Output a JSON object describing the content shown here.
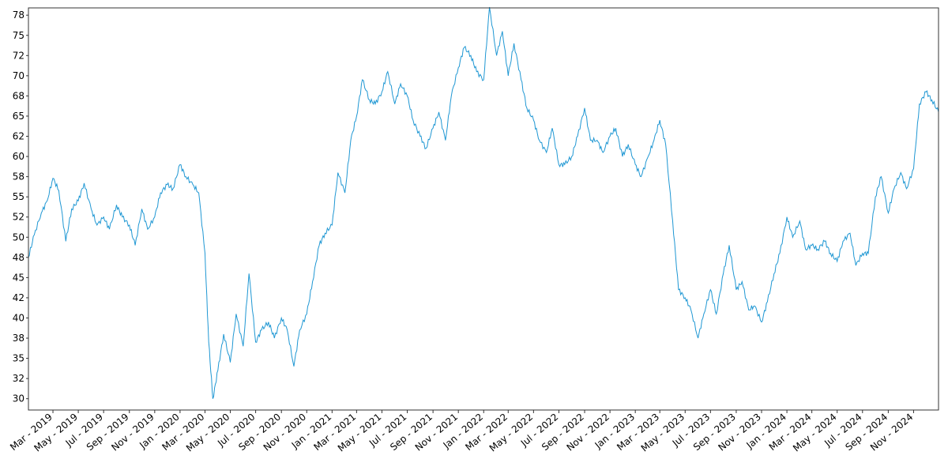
{
  "chart_data": {
    "type": "line",
    "title": "",
    "xlabel": "",
    "ylabel": "",
    "grid": false,
    "legend": "none",
    "color": "#1f97d3",
    "xlim": [
      "2019-01-01",
      "2024-12-31"
    ],
    "ylim": [
      28.6,
      78.4
    ],
    "y_ticks": [
      30,
      32.5,
      35,
      37.5,
      40,
      42.5,
      45,
      47.5,
      50,
      52.5,
      55,
      57.5,
      60,
      62.5,
      65,
      67.5,
      70,
      72.5,
      75,
      77.5
    ],
    "y_tick_labels": [
      "30",
      "32",
      "35",
      "38",
      "40",
      "42",
      "45",
      "48",
      "50",
      "52",
      "55",
      "58",
      "60",
      "62",
      "65",
      "68",
      "70",
      "72",
      "75",
      "78"
    ],
    "x_ticks": [
      "2019-03-01",
      "2019-05-01",
      "2019-07-01",
      "2019-09-01",
      "2019-11-01",
      "2020-01-01",
      "2020-03-01",
      "2020-05-01",
      "2020-07-01",
      "2020-09-01",
      "2020-11-01",
      "2021-01-01",
      "2021-03-01",
      "2021-05-01",
      "2021-07-01",
      "2021-09-01",
      "2021-11-01",
      "2022-01-01",
      "2022-03-01",
      "2022-05-01",
      "2022-07-01",
      "2022-09-01",
      "2022-11-01",
      "2023-01-01",
      "2023-03-01",
      "2023-05-01",
      "2023-07-01",
      "2023-09-01",
      "2023-11-01",
      "2024-01-01",
      "2024-03-01",
      "2024-05-01",
      "2024-07-01",
      "2024-09-01",
      "2024-11-01"
    ],
    "x_tick_labels": [
      "Mar - 2019",
      "May - 2019",
      "Jul - 2019",
      "Sep - 2019",
      "Nov - 2019",
      "Jan - 2020",
      "Mar - 2020",
      "May - 2020",
      "Jul - 2020",
      "Sep - 2020",
      "Nov - 2020",
      "Jan - 2021",
      "Mar - 2021",
      "May - 2021",
      "Jul - 2021",
      "Sep - 2021",
      "Nov - 2021",
      "Jan - 2022",
      "Mar - 2022",
      "May - 2022",
      "Jul - 2022",
      "Sep - 2022",
      "Nov - 2022",
      "Jan - 2023",
      "Mar - 2023",
      "May - 2023",
      "Jul - 2023",
      "Sep - 2023",
      "Nov - 2023",
      "Jan - 2024",
      "Mar - 2024",
      "May - 2024",
      "Jul - 2024",
      "Sep - 2024",
      "Nov - 2024"
    ],
    "series": [
      {
        "x": [
          "2019-01-01",
          "2019-01-15",
          "2019-02-01",
          "2019-02-15",
          "2019-03-01",
          "2019-03-15",
          "2019-04-01",
          "2019-04-15",
          "2019-05-01",
          "2019-05-15",
          "2019-06-01",
          "2019-06-15",
          "2019-07-01",
          "2019-07-15",
          "2019-08-01",
          "2019-08-15",
          "2019-09-01",
          "2019-09-15",
          "2019-10-01",
          "2019-10-15",
          "2019-11-01",
          "2019-11-15",
          "2019-12-01",
          "2019-12-15",
          "2020-01-01",
          "2020-01-15",
          "2020-02-01",
          "2020-02-15",
          "2020-03-01",
          "2020-03-10",
          "2020-03-20",
          "2020-04-01",
          "2020-04-15",
          "2020-05-01",
          "2020-05-15",
          "2020-06-01",
          "2020-06-15",
          "2020-07-01",
          "2020-07-15",
          "2020-08-01",
          "2020-08-15",
          "2020-09-01",
          "2020-09-15",
          "2020-10-01",
          "2020-10-15",
          "2020-11-01",
          "2020-11-15",
          "2020-12-01",
          "2020-12-15",
          "2021-01-01",
          "2021-01-15",
          "2021-02-01",
          "2021-02-15",
          "2021-03-01",
          "2021-03-15",
          "2021-04-01",
          "2021-04-15",
          "2021-05-01",
          "2021-05-15",
          "2021-06-01",
          "2021-06-15",
          "2021-07-01",
          "2021-07-15",
          "2021-08-01",
          "2021-08-15",
          "2021-09-01",
          "2021-09-15",
          "2021-10-01",
          "2021-10-15",
          "2021-11-01",
          "2021-11-15",
          "2021-12-01",
          "2021-12-15",
          "2022-01-01",
          "2022-01-15",
          "2022-02-01",
          "2022-02-15",
          "2022-03-01",
          "2022-03-15",
          "2022-04-01",
          "2022-04-15",
          "2022-05-01",
          "2022-05-15",
          "2022-06-01",
          "2022-06-15",
          "2022-07-01",
          "2022-07-15",
          "2022-08-01",
          "2022-08-15",
          "2022-09-01",
          "2022-09-15",
          "2022-10-01",
          "2022-10-15",
          "2022-11-01",
          "2022-11-15",
          "2022-12-01",
          "2022-12-15",
          "2023-01-01",
          "2023-01-15",
          "2023-02-01",
          "2023-02-15",
          "2023-03-01",
          "2023-03-15",
          "2023-04-01",
          "2023-04-15",
          "2023-05-01",
          "2023-05-15",
          "2023-06-01",
          "2023-06-15",
          "2023-07-01",
          "2023-07-15",
          "2023-08-01",
          "2023-08-15",
          "2023-09-01",
          "2023-09-15",
          "2023-10-01",
          "2023-10-15",
          "2023-11-01",
          "2023-11-15",
          "2023-12-01",
          "2023-12-15",
          "2024-01-01",
          "2024-01-15",
          "2024-02-01",
          "2024-02-15",
          "2024-03-01",
          "2024-03-15",
          "2024-04-01",
          "2024-04-15",
          "2024-05-01",
          "2024-05-15",
          "2024-06-01",
          "2024-06-15",
          "2024-07-01",
          "2024-07-15",
          "2024-08-01",
          "2024-08-15",
          "2024-09-01",
          "2024-09-15",
          "2024-10-01",
          "2024-10-15",
          "2024-11-01",
          "2024-11-15",
          "2024-12-01",
          "2024-12-15",
          "2024-12-31"
        ],
        "y": [
          47.5,
          50.3,
          53.0,
          54.5,
          57.3,
          55.8,
          49.5,
          53.5,
          54.5,
          56.7,
          53.5,
          51.5,
          52.5,
          51.0,
          54.0,
          52.5,
          51.5,
          49.0,
          53.5,
          51.0,
          52.5,
          55.5,
          56.5,
          56.0,
          59.0,
          57.5,
          56.5,
          55.5,
          48.0,
          37.0,
          30.0,
          33.5,
          38.0,
          34.5,
          40.5,
          36.5,
          45.5,
          37.0,
          38.5,
          39.5,
          37.5,
          40.0,
          38.5,
          34.0,
          38.5,
          40.5,
          44.5,
          49.0,
          50.5,
          51.5,
          58.0,
          55.5,
          62.0,
          65.0,
          69.5,
          67.0,
          66.5,
          68.0,
          70.5,
          66.5,
          69.0,
          67.5,
          64.5,
          62.5,
          61.0,
          63.5,
          65.5,
          62.0,
          67.5,
          71.0,
          73.5,
          72.5,
          70.5,
          69.5,
          78.5,
          72.5,
          75.5,
          70.0,
          74.0,
          69.5,
          66.0,
          64.5,
          62.0,
          60.5,
          63.5,
          59.0,
          59.0,
          60.0,
          62.5,
          66.0,
          62.0,
          62.0,
          60.5,
          62.5,
          63.5,
          60.0,
          61.5,
          59.0,
          57.5,
          60.0,
          62.0,
          64.5,
          61.5,
          52.0,
          43.5,
          42.5,
          41.0,
          37.5,
          40.5,
          43.5,
          40.5,
          45.5,
          49.0,
          43.5,
          44.5,
          41.0,
          41.5,
          39.5,
          42.0,
          45.5,
          48.0,
          52.5,
          50.0,
          52.0,
          48.5,
          49.0,
          48.5,
          49.5,
          48.0,
          47.0,
          49.5,
          50.5,
          46.5,
          48.0,
          48.0,
          55.0,
          57.5,
          53.0,
          56.0,
          58.0,
          56.0,
          58.5,
          66.5,
          68.0,
          67.0,
          65.5
        ]
      }
    ]
  }
}
